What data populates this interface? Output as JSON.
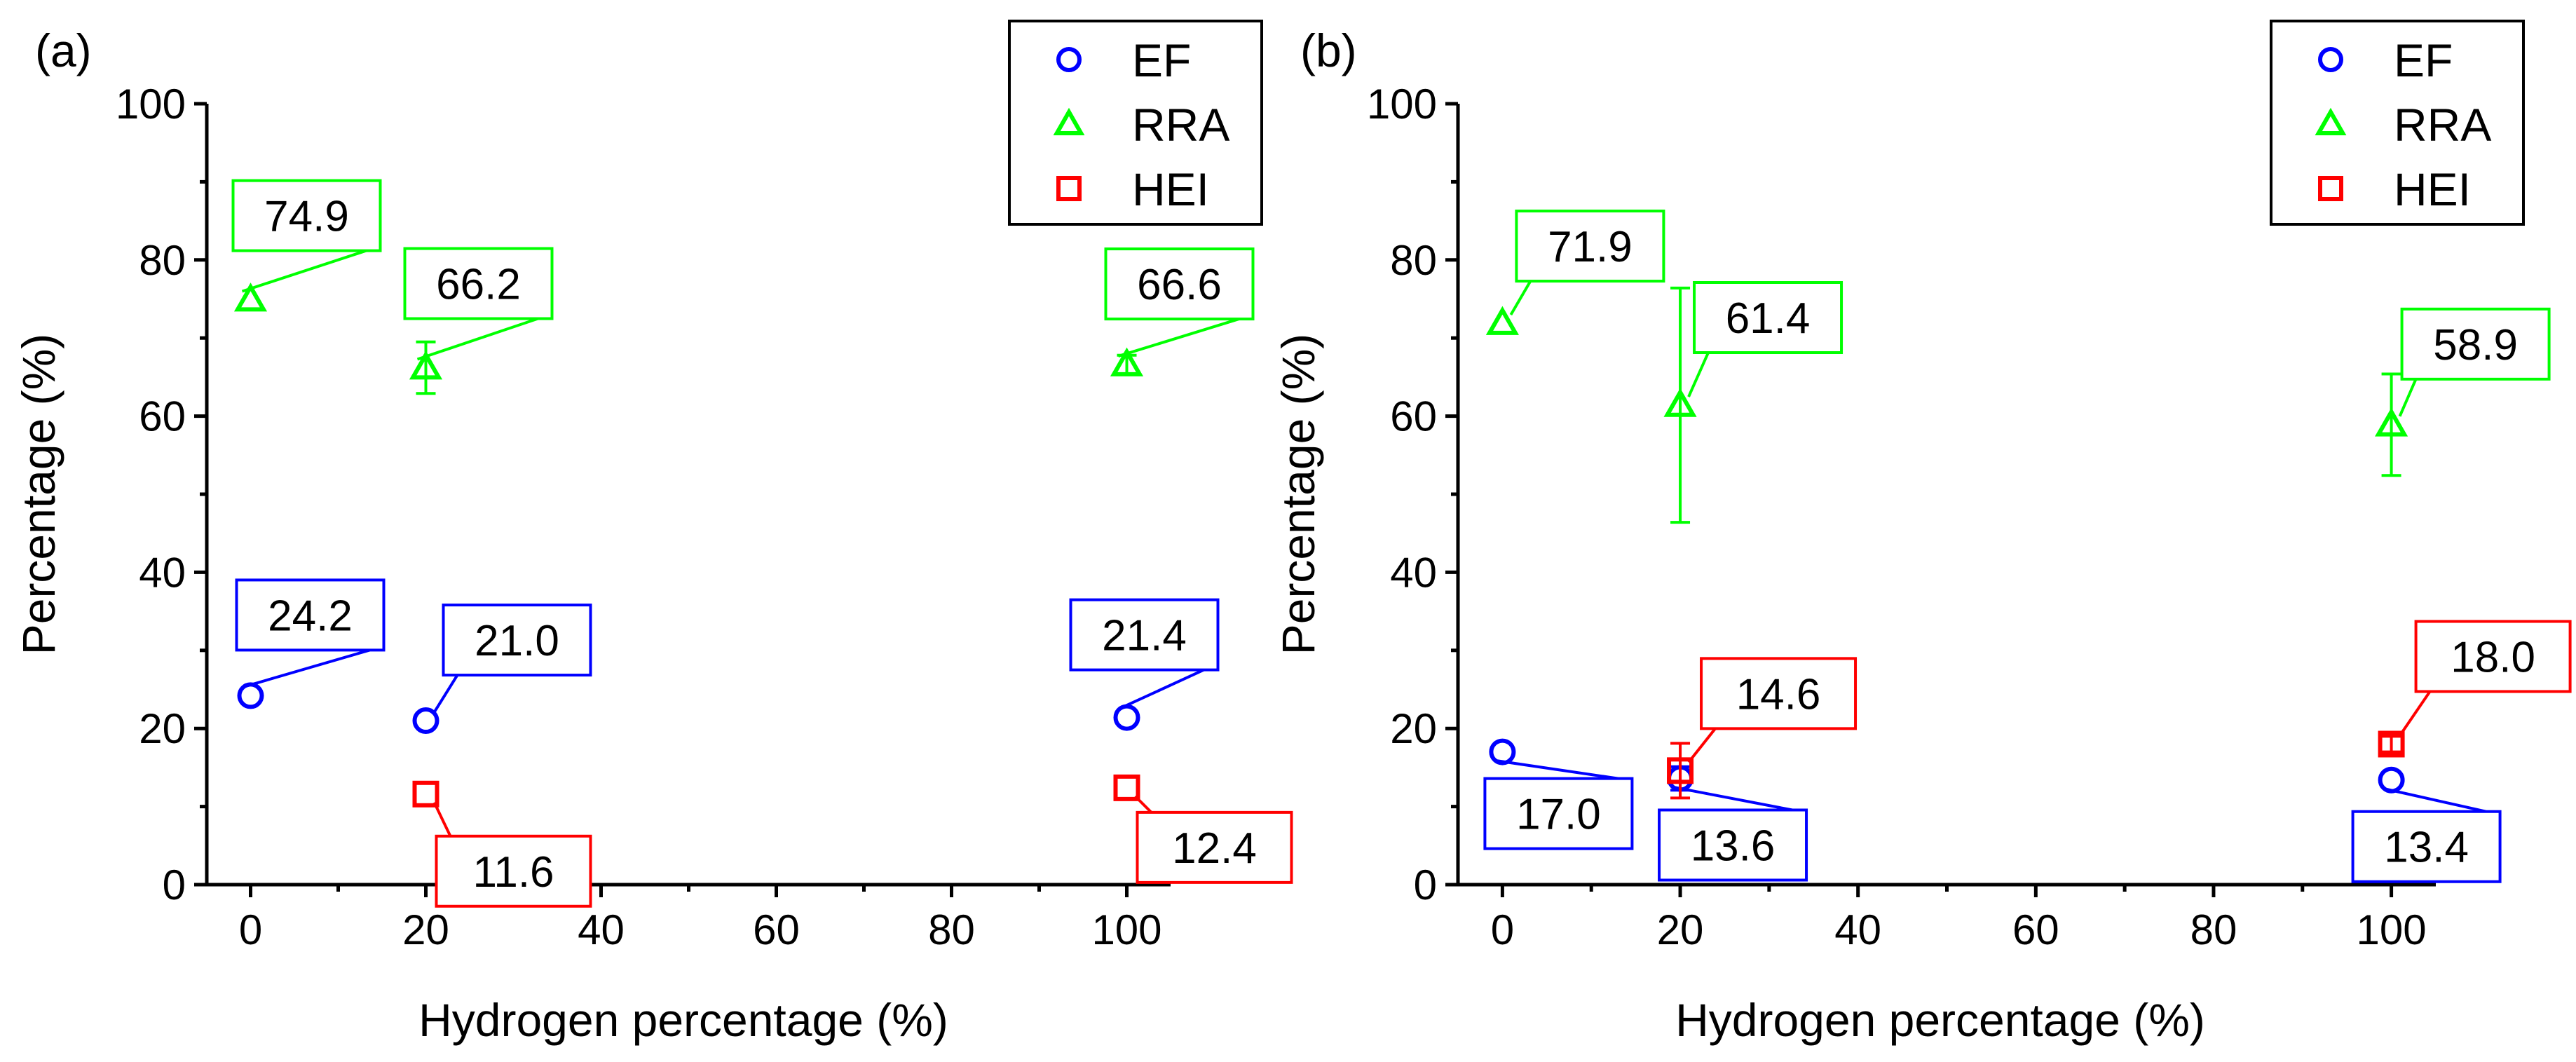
{
  "chart_data": [
    {
      "type": "scatter",
      "panel_label": "(a)",
      "xlabel": "Hydrogen percentage (%)",
      "ylabel": "Percentage (%)",
      "xlim": [
        -5,
        105
      ],
      "ylim": [
        0,
        100
      ],
      "xticks": [
        0,
        20,
        40,
        60,
        80,
        100
      ],
      "yticks": [
        0,
        20,
        40,
        60,
        80,
        100
      ],
      "legend_position": "top-right",
      "series": [
        {
          "name": "EF",
          "marker": "circle",
          "color": "#0000ff",
          "x": [
            0,
            20,
            100
          ],
          "y": [
            24.2,
            21.0,
            21.4
          ],
          "err": [
            0.5,
            0.5,
            0.5
          ],
          "labels": [
            "24.2",
            "21.0",
            "21.4"
          ]
        },
        {
          "name": "RRA",
          "marker": "triangle",
          "color": "#00ff00",
          "x": [
            0,
            20,
            100
          ],
          "y": [
            74.9,
            66.2,
            66.6
          ],
          "err": [
            0.5,
            3.3,
            1.2
          ],
          "labels": [
            "74.9",
            "66.2",
            "66.6"
          ]
        },
        {
          "name": "HEI",
          "marker": "square",
          "color": "#ff0000",
          "x": [
            0,
            20,
            100
          ],
          "y": [
            null,
            11.6,
            12.4
          ],
          "err": [
            0,
            0.6,
            0.7
          ],
          "labels": [
            "",
            "11.6",
            "12.4"
          ]
        }
      ]
    },
    {
      "type": "scatter",
      "panel_label": "(b)",
      "xlabel": "Hydrogen percentage (%)",
      "ylabel": "Percentage (%)",
      "xlim": [
        -5,
        105
      ],
      "ylim": [
        0,
        100
      ],
      "xticks": [
        0,
        20,
        40,
        60,
        80,
        100
      ],
      "yticks": [
        0,
        20,
        40,
        60,
        80,
        100
      ],
      "legend_position": "top-right",
      "series": [
        {
          "name": "EF",
          "marker": "circle",
          "color": "#0000ff",
          "x": [
            0,
            20,
            100
          ],
          "y": [
            17.0,
            13.6,
            13.4
          ],
          "err": [
            0.5,
            1.5,
            0.5
          ],
          "labels": [
            "17.0",
            "13.6",
            "13.4"
          ]
        },
        {
          "name": "RRA",
          "marker": "triangle",
          "color": "#00ff00",
          "x": [
            0,
            20,
            100
          ],
          "y": [
            71.9,
            61.4,
            58.9
          ],
          "err": [
            0.5,
            15.0,
            6.5
          ],
          "labels": [
            "71.9",
            "61.4",
            "58.9"
          ]
        },
        {
          "name": "HEI",
          "marker": "square",
          "color": "#ff0000",
          "x": [
            0,
            20,
            100
          ],
          "y": [
            null,
            14.6,
            18.0
          ],
          "err": [
            0,
            3.5,
            1.0
          ],
          "labels": [
            "",
            "14.6",
            "18.0"
          ]
        }
      ]
    }
  ]
}
